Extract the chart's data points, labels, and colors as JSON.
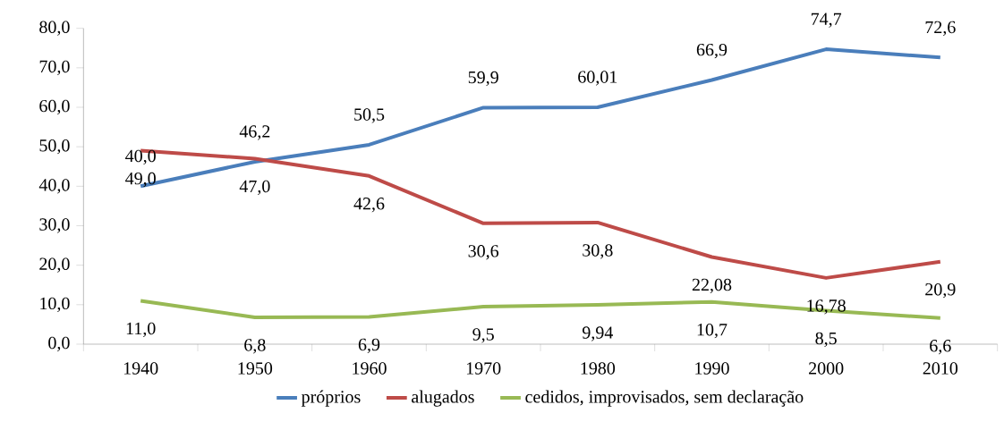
{
  "chart_data": {
    "type": "line",
    "categories": [
      "1940",
      "1950",
      "1960",
      "1970",
      "1980",
      "1990",
      "2000",
      "2010"
    ],
    "series": [
      {
        "name": "próprios",
        "color": "#4a7ebb",
        "values": [
          40.0,
          46.2,
          50.5,
          59.9,
          60.01,
          66.9,
          74.7,
          72.6
        ],
        "value_labels": [
          "40,0",
          "46,2",
          "50,5",
          "59,9",
          "60,01",
          "66,9",
          "74,7",
          "72,6"
        ]
      },
      {
        "name": "alugados",
        "color": "#be4b48",
        "values": [
          49.0,
          47.0,
          42.6,
          30.6,
          30.8,
          22.08,
          16.78,
          20.9
        ],
        "value_labels": [
          "49,0",
          "47,0",
          "42,6",
          "30,6",
          "30,8",
          "22,08",
          "16,78",
          "20,9"
        ]
      },
      {
        "name": "cedidos, improvisados, sem declaração",
        "color": "#98b954",
        "values": [
          11.0,
          6.8,
          6.9,
          9.5,
          9.94,
          10.7,
          8.5,
          6.6
        ],
        "value_labels": [
          "11,0",
          "6,8",
          "6,9",
          "9,5",
          "9,94",
          "10,7",
          "8,5",
          "6,6"
        ]
      }
    ],
    "ylim": [
      0,
      80
    ],
    "yticks": [
      {
        "value": 0,
        "label": "0,0"
      },
      {
        "value": 10,
        "label": "10,0"
      },
      {
        "value": 20,
        "label": "20,0"
      },
      {
        "value": 30,
        "label": "30,0"
      },
      {
        "value": 40,
        "label": "40,0"
      },
      {
        "value": 50,
        "label": "50,0"
      },
      {
        "value": 60,
        "label": "60,0"
      },
      {
        "value": 70,
        "label": "70,0"
      },
      {
        "value": 80,
        "label": "80,0"
      }
    ],
    "grid": false,
    "legend": "bottom",
    "marker": "none",
    "line_style": "solid"
  }
}
